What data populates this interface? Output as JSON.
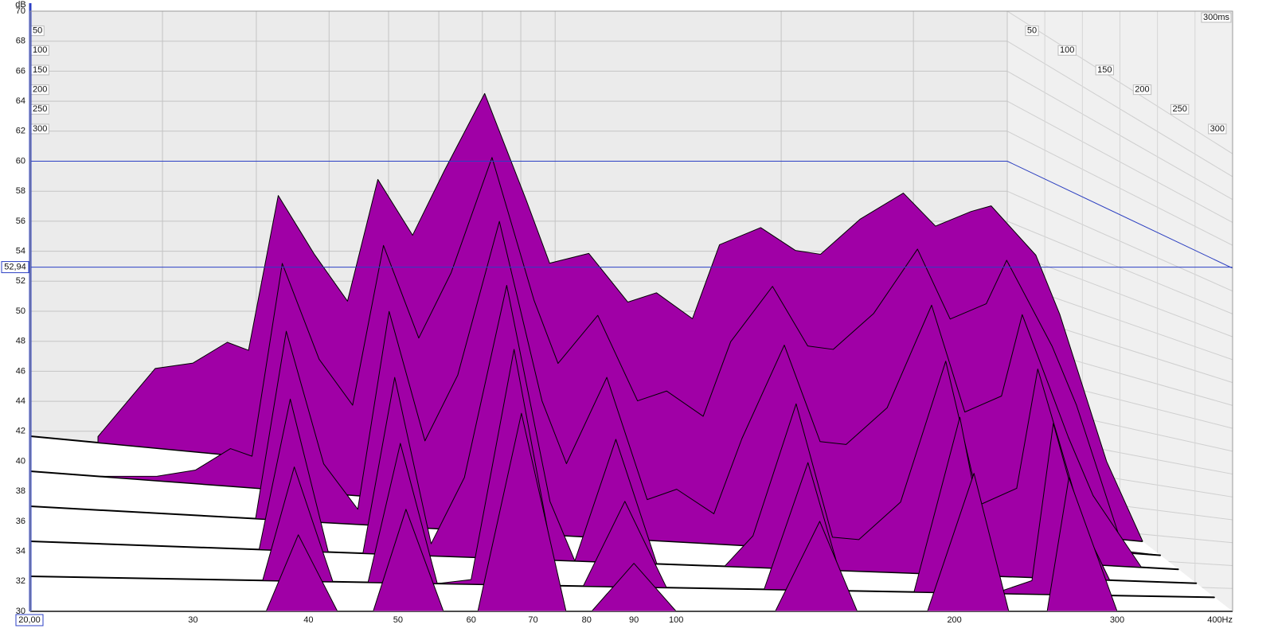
{
  "chart_data": {
    "type": "waterfall",
    "y_label": "dB",
    "ylim": [
      30,
      70
    ],
    "yticks": [
      30,
      32,
      34,
      36,
      38,
      40,
      42,
      44,
      46,
      48,
      50,
      52,
      54,
      56,
      58,
      60,
      62,
      64,
      66,
      68,
      70
    ],
    "xlim": [
      20,
      400
    ],
    "x_log": true,
    "xticks": [
      30,
      40,
      50,
      60,
      70,
      80,
      90,
      100,
      200,
      300,
      {
        "value": 400,
        "label": "400Hz"
      }
    ],
    "zlim": [
      0,
      300
    ],
    "zticks": [
      50,
      100,
      150,
      200,
      250,
      300
    ],
    "z_end_label": {
      "value": 300,
      "label": "300ms"
    },
    "color": "#a000a6",
    "grid": true,
    "cursor": {
      "x": {
        "value": 20,
        "label": "20,00"
      },
      "y": {
        "value": 52.94,
        "label": "52,94"
      }
    },
    "reference_level": 60,
    "x": [
      24,
      28,
      31,
      34,
      36,
      39,
      43,
      47,
      51,
      56,
      61,
      68,
      76,
      81,
      90,
      100,
      108,
      119,
      128,
      143,
      157,
      168,
      187,
      210,
      229,
      252,
      266,
      300,
      320,
      363,
      400
    ],
    "slices": [
      {
        "time": 0,
        "values": [
          30.4,
          35.3,
          35.9,
          37.5,
          37.1,
          47.6,
          43.9,
          41.0,
          49.3,
          45.8,
          50.3,
          55.7,
          48.9,
          44.8,
          45.7,
          42.7,
          43.5,
          42.0,
          47.1,
          48.5,
          47.2,
          47.1,
          49.7,
          51.7,
          49.7,
          50.9,
          51.4,
          48.4,
          44.6,
          35.1,
          30.0
        ]
      },
      {
        "time": 60,
        "values": [
          30,
          30.3,
          30.9,
          32.5,
          32.1,
          45.1,
          38.9,
          36.0,
          46.8,
          40.8,
          45.3,
          53.2,
          43.9,
          39.8,
          43.2,
          37.7,
          38.5,
          37.0,
          42.1,
          46.0,
          42.2,
          42.1,
          44.7,
          49.2,
          44.7,
          45.9,
          48.9,
          43.4,
          39.6,
          30.1,
          30
        ]
      },
      {
        "time": 120,
        "values": [
          30,
          30,
          30,
          30,
          30,
          42.6,
          33.9,
          31.0,
          44.3,
          35.8,
          40.3,
          50.7,
          38.9,
          34.8,
          40.7,
          32.7,
          33.5,
          32.0,
          37.1,
          43.5,
          37.2,
          37.1,
          39.7,
          46.7,
          39.7,
          40.9,
          46.4,
          38.4,
          34.6,
          30,
          30
        ]
      },
      {
        "time": 180,
        "values": [
          30,
          30,
          30,
          30,
          30,
          40.1,
          30,
          30,
          41.8,
          30.8,
          35.3,
          48.2,
          33.9,
          30,
          38.2,
          30,
          30,
          30,
          32.1,
          41.0,
          32.2,
          32.1,
          34.7,
          44.2,
          34.7,
          35.9,
          43.9,
          33.4,
          30,
          30,
          30
        ]
      },
      {
        "time": 240,
        "values": [
          30,
          30,
          30,
          30,
          30,
          37.6,
          30,
          30,
          39.3,
          30,
          30.3,
          45.7,
          30,
          30,
          35.7,
          30,
          30,
          30,
          30,
          38.5,
          30,
          30,
          30,
          41.7,
          30,
          30.9,
          41.4,
          30,
          30,
          30,
          30
        ]
      },
      {
        "time": 300,
        "values": [
          30,
          30,
          30,
          30,
          30,
          35.1,
          30,
          30,
          36.8,
          30,
          30,
          43.2,
          30,
          30,
          33.2,
          30,
          30,
          30,
          30,
          36.0,
          30,
          30,
          30,
          39.2,
          30,
          30,
          38.9,
          30,
          30,
          30,
          30
        ]
      }
    ]
  }
}
